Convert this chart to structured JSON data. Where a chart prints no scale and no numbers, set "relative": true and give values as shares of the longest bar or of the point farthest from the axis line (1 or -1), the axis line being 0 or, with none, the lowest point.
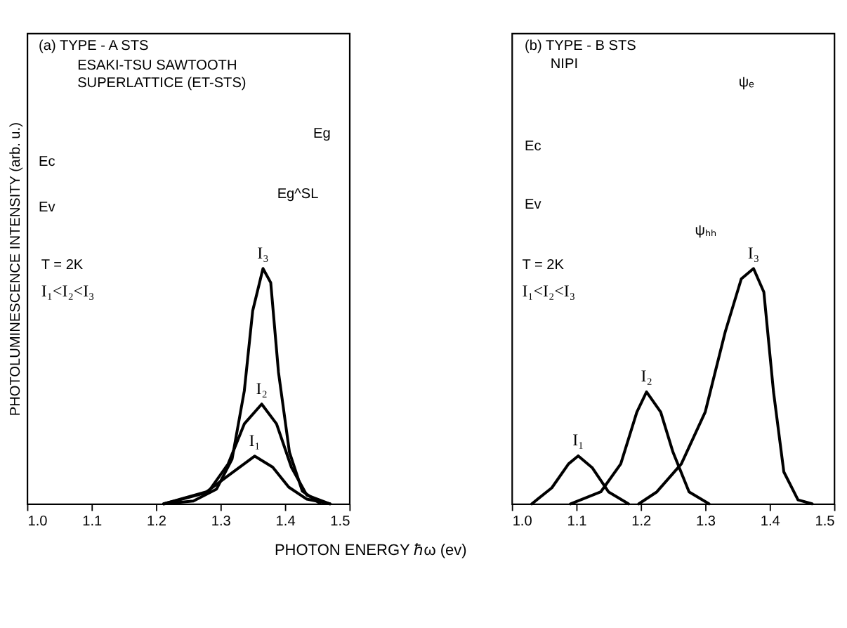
{
  "chart_data": [
    {
      "type": "line",
      "relative": true,
      "ylabel": "PHOTOLUMINESCENCE INTENSITY (arb. u.)",
      "xlabel": "PHOTON ENERGY ℏω (ev)",
      "xlim": [
        1.0,
        1.5
      ],
      "xticks": [
        {
          "value": 1,
          "label": "1.0"
        },
        1.1,
        1.2,
        1.3,
        1.4,
        1.5
      ],
      "grid": false,
      "legend": false,
      "marker": "none",
      "line_style": "solid",
      "annotations": [
        "(a) TYPE - A STS",
        "ESAKI-TSU SAWTOOTH",
        "SUPERLATTICE (ET-STS)",
        "Ec",
        "Ev",
        "Eg",
        "Eg^SL",
        "T = 2K",
        "I₁<I₂<I₃"
      ],
      "series": [
        {
          "name": "I₁",
          "color": "#000000",
          "x": [
            1.212,
            1.276,
            1.312,
            1.353,
            1.381,
            1.406,
            1.434,
            1.47
          ],
          "values": [
            0,
            0.046,
            0.12,
            0.203,
            0.156,
            0.071,
            0.02,
            0
          ]
        },
        {
          "name": "I₂",
          "color": "#000000",
          "x": [
            1.212,
            1.282,
            1.312,
            1.337,
            1.364,
            1.387,
            1.41,
            1.434,
            1.47
          ],
          "values": [
            0,
            0.054,
            0.17,
            0.34,
            0.424,
            0.34,
            0.156,
            0.037,
            0
          ]
        },
        {
          "name": "I₃",
          "color": "#000000",
          "x": [
            1.212,
            1.258,
            1.294,
            1.318,
            1.337,
            1.35,
            1.366,
            1.378,
            1.39,
            1.407,
            1.427,
            1.454
          ],
          "values": [
            0,
            0.012,
            0.063,
            0.19,
            0.48,
            0.82,
            1.0,
            0.94,
            0.56,
            0.22,
            0.054,
            0.003
          ]
        }
      ]
    },
    {
      "type": "line",
      "relative": true,
      "xlim": [
        1.0,
        1.5
      ],
      "xticks": [
        {
          "value": 1,
          "label": "1.0"
        },
        1.1,
        1.2,
        1.3,
        1.4,
        1.5
      ],
      "grid": false,
      "legend": false,
      "marker": "none",
      "line_style": "solid",
      "annotations": [
        "(b) TYPE - B STS",
        "NIPI",
        "Ec",
        "Ev",
        "ψₑ",
        "ψₕₕ",
        "T = 2K",
        "I₁<I₂<I₃"
      ],
      "series": [
        {
          "name": "I₁",
          "color": "#000000",
          "x": [
            1.031,
            1.062,
            1.088,
            1.103,
            1.125,
            1.15,
            1.181
          ],
          "values": [
            0,
            0.068,
            0.17,
            0.204,
            0.153,
            0.051,
            0
          ]
        },
        {
          "name": "I₂",
          "color": "#000000",
          "x": [
            1.091,
            1.138,
            1.169,
            1.194,
            1.209,
            1.231,
            1.25,
            1.275,
            1.306
          ],
          "values": [
            0,
            0.051,
            0.17,
            0.39,
            0.476,
            0.39,
            0.22,
            0.051,
            0
          ]
        },
        {
          "name": "I₃",
          "color": "#000000",
          "x": [
            1.197,
            1.225,
            1.263,
            1.3,
            1.331,
            1.356,
            1.375,
            1.391,
            1.406,
            1.422,
            1.444,
            1.466
          ],
          "values": [
            0,
            0.051,
            0.17,
            0.39,
            0.73,
            0.956,
            1.0,
            0.9,
            0.476,
            0.136,
            0.017,
            0
          ]
        }
      ]
    }
  ]
}
